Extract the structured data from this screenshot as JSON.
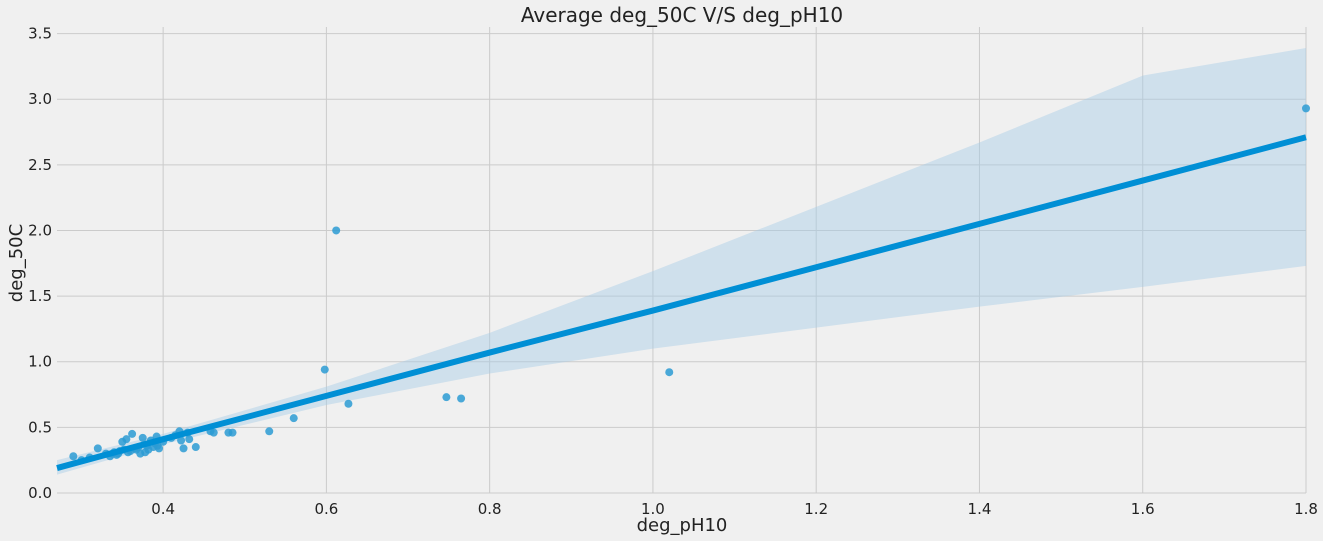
{
  "chart_data": {
    "type": "scatter",
    "title": "Average deg_50C V/S deg_pH10",
    "xlabel": "deg_pH10",
    "ylabel": "deg_50C",
    "xlim": [
      0.27,
      1.8
    ],
    "ylim": [
      0,
      3.55
    ],
    "xticks": [
      "0.4",
      "0.6",
      "0.8",
      "1.0",
      "1.2",
      "1.4",
      "1.6",
      "1.8"
    ],
    "yticks": [
      "0.0",
      "0.5",
      "1.0",
      "1.5",
      "2.0",
      "2.5",
      "3.0",
      "3.5"
    ],
    "grid": true,
    "colors": {
      "points": "#2b9bd4",
      "line": "#008fd5",
      "band": "#a6cde6",
      "grid": "#cbcbcb",
      "background": "#f0f0f0"
    },
    "regression": {
      "x": [
        0.27,
        0.4,
        0.6,
        0.8,
        1.0,
        1.2,
        1.4,
        1.6,
        1.8
      ],
      "y": [
        0.19,
        0.41,
        0.74,
        1.07,
        1.39,
        1.72,
        2.05,
        2.38,
        2.71
      ],
      "ci_lower": [
        0.14,
        0.37,
        0.67,
        0.91,
        1.1,
        1.26,
        1.42,
        1.57,
        1.73
      ],
      "ci_upper": [
        0.25,
        0.45,
        0.81,
        1.22,
        1.69,
        2.18,
        2.67,
        3.18,
        3.39
      ]
    },
    "x": [
      0.29,
      0.3,
      0.31,
      0.32,
      0.33,
      0.335,
      0.34,
      0.345,
      0.35,
      0.352,
      0.355,
      0.36,
      0.362,
      0.365,
      0.37,
      0.372,
      0.375,
      0.378,
      0.38,
      0.382,
      0.385,
      0.388,
      0.39,
      0.392,
      0.395,
      0.4,
      0.41,
      0.415,
      0.42,
      0.422,
      0.425,
      0.43,
      0.432,
      0.44,
      0.458,
      0.462,
      0.48,
      0.485,
      0.53,
      0.56,
      0.598,
      0.612,
      0.627,
      0.747,
      0.765,
      1.02,
      1.8,
      0.343,
      0.338,
      0.347,
      0.357,
      0.367,
      0.393
    ],
    "y": [
      0.28,
      0.25,
      0.27,
      0.34,
      0.3,
      0.28,
      0.31,
      0.3,
      0.39,
      0.33,
      0.41,
      0.32,
      0.45,
      0.34,
      0.35,
      0.3,
      0.42,
      0.31,
      0.36,
      0.33,
      0.4,
      0.35,
      0.38,
      0.43,
      0.34,
      0.39,
      0.42,
      0.44,
      0.47,
      0.4,
      0.34,
      0.46,
      0.41,
      0.35,
      0.47,
      0.46,
      0.46,
      0.46,
      0.47,
      0.57,
      0.94,
      2.0,
      0.68,
      0.73,
      0.72,
      0.92,
      2.93,
      0.29,
      0.3,
      0.32,
      0.31,
      0.33,
      0.36
    ]
  }
}
